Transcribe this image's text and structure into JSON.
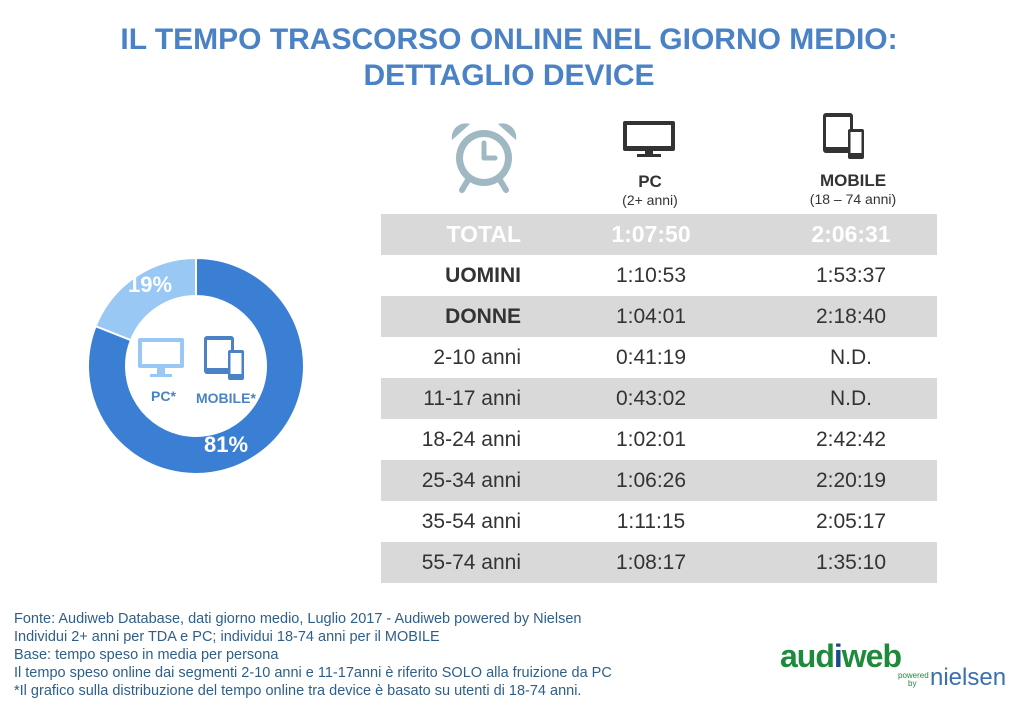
{
  "title": {
    "line1": "IL TEMPO TRASCORSO ONLINE NEL GIORNO MEDIO:",
    "line2": "DETTAGLIO DEVICE"
  },
  "icons": {
    "clock": "alarm-clock-icon",
    "pc": "monitor-icon",
    "mobile": "tablet-phone-icon"
  },
  "colors": {
    "title": "#4a82c5",
    "donut_mobile": "#3b7fd4",
    "donut_pc": "#99c8f5",
    "row_shade": "#d9d9d9",
    "footer_text": "#2e5f8a"
  },
  "donut": {
    "pc_label": "PC*",
    "mobile_label": "MOBILE*",
    "pc_pct_label": "19%",
    "mobile_pct_label": "81%"
  },
  "columns": {
    "pc": {
      "name": "PC",
      "sub": "(2+ anni)"
    },
    "mobile": {
      "name": "MOBILE",
      "sub": "(18 – 74 anni)"
    }
  },
  "rows": [
    {
      "label": "TOTAL",
      "pc": "1:07:50",
      "mobile": "2:06:31"
    },
    {
      "label": "UOMINI",
      "pc": "1:10:53",
      "mobile": "1:53:37"
    },
    {
      "label": "DONNE",
      "pc": "1:04:01",
      "mobile": "2:18:40"
    },
    {
      "label": "2-10 anni",
      "pc": "0:41:19",
      "mobile": "N.D."
    },
    {
      "label": "11-17 anni",
      "pc": "0:43:02",
      "mobile": "N.D."
    },
    {
      "label": "18-24 anni",
      "pc": "1:02:01",
      "mobile": "2:42:42"
    },
    {
      "label": "25-34 anni",
      "pc": "1:06:26",
      "mobile": "2:20:19"
    },
    {
      "label": "35-54 anni",
      "pc": "1:11:15",
      "mobile": "2:05:17"
    },
    {
      "label": "55-74 anni",
      "pc": "1:08:17",
      "mobile": "1:35:10"
    }
  ],
  "footer": [
    "Fonte: Audiweb Database, dati giorno medio, Luglio  2017 - Audiweb powered by Nielsen",
    "Individui 2+ anni per TDA e PC; individui 18-74 anni per il MOBILE",
    "Base: tempo speso in media per persona",
    "Il tempo speso online dai segmenti 2-10 anni e 11-17anni è riferito SOLO alla fruizione da PC",
    "*Il grafico sulla distribuzione del tempo online tra device è basato su utenti di 18-74 anni."
  ],
  "logo": {
    "aud": "aud",
    "i": "i",
    "web": "web",
    "powered_line1": "powered",
    "powered_line2": "by",
    "nielsen": "nielsen"
  },
  "chart_data": {
    "type": "pie",
    "categories": [
      "PC*",
      "MOBILE*"
    ],
    "values": [
      19,
      81
    ],
    "labels": [
      "19%",
      "81%"
    ]
  }
}
